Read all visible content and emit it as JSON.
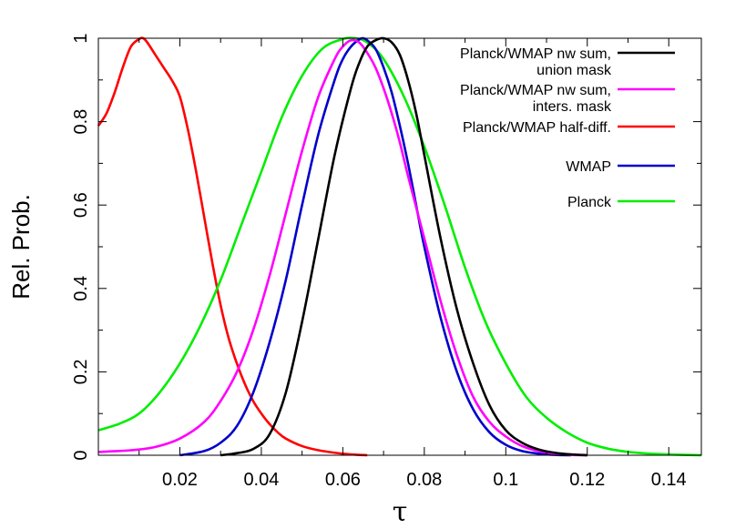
{
  "chart_data": {
    "type": "line",
    "title": "",
    "xlabel": "τ",
    "ylabel": "Rel. Prob.",
    "xlim": [
      0.0,
      0.148
    ],
    "ylim": [
      0,
      1.0
    ],
    "x_ticks": [
      0.02,
      0.04,
      0.06,
      0.08,
      0.1,
      0.12,
      0.14
    ],
    "x_tick_labels": [
      "0.02",
      "0.04",
      "0.06",
      "0.08",
      "0.1",
      "0.12",
      "0.14"
    ],
    "y_ticks": [
      0,
      0.2,
      0.4,
      0.6,
      0.8,
      1
    ],
    "y_tick_labels": [
      "0",
      "0.2",
      "0.4",
      "0.6",
      "0.8",
      "1"
    ],
    "grid": false,
    "legend_position": "top-right",
    "series": [
      {
        "name": "Planck/WMAP nw sum,\nunion mask",
        "color": "#000000",
        "x": [
          0.03,
          0.034,
          0.038,
          0.042,
          0.046,
          0.05,
          0.054,
          0.058,
          0.062,
          0.064,
          0.066,
          0.068,
          0.07,
          0.072,
          0.074,
          0.076,
          0.078,
          0.08,
          0.084,
          0.088,
          0.092,
          0.096,
          0.1,
          0.104,
          0.108,
          0.112,
          0.116,
          0.12
        ],
        "y": [
          0.0,
          0.005,
          0.015,
          0.05,
          0.15,
          0.32,
          0.52,
          0.72,
          0.88,
          0.94,
          0.98,
          0.995,
          1.0,
          0.99,
          0.96,
          0.9,
          0.82,
          0.72,
          0.52,
          0.35,
          0.22,
          0.12,
          0.06,
          0.03,
          0.014,
          0.006,
          0.002,
          0.0
        ]
      },
      {
        "name": "Planck/WMAP nw sum,\ninters. mask",
        "color": "#ff00ff",
        "x": [
          0.0,
          0.008,
          0.014,
          0.02,
          0.026,
          0.03,
          0.034,
          0.038,
          0.042,
          0.046,
          0.05,
          0.054,
          0.058,
          0.06,
          0.062,
          0.064,
          0.066,
          0.068,
          0.07,
          0.072,
          0.074,
          0.076,
          0.08,
          0.084,
          0.088,
          0.092,
          0.096,
          0.1,
          0.104,
          0.108,
          0.112,
          0.116,
          0.12
        ],
        "y": [
          0.008,
          0.012,
          0.02,
          0.04,
          0.08,
          0.13,
          0.2,
          0.3,
          0.43,
          0.58,
          0.73,
          0.86,
          0.95,
          0.98,
          0.995,
          0.99,
          0.965,
          0.93,
          0.88,
          0.82,
          0.75,
          0.67,
          0.52,
          0.37,
          0.24,
          0.14,
          0.08,
          0.045,
          0.022,
          0.01,
          0.004,
          0.001,
          0.0
        ]
      },
      {
        "name": "Planck/WMAP half-diff.",
        "color": "#ff0000",
        "x": [
          0.0,
          0.002,
          0.004,
          0.006,
          0.008,
          0.01,
          0.011,
          0.012,
          0.014,
          0.016,
          0.018,
          0.02,
          0.022,
          0.024,
          0.026,
          0.028,
          0.03,
          0.032,
          0.034,
          0.036,
          0.038,
          0.04,
          0.042,
          0.044,
          0.046,
          0.05,
          0.054,
          0.058,
          0.062,
          0.066
        ],
        "y": [
          0.79,
          0.82,
          0.87,
          0.93,
          0.98,
          0.998,
          1.0,
          0.99,
          0.96,
          0.93,
          0.9,
          0.86,
          0.78,
          0.68,
          0.57,
          0.46,
          0.36,
          0.28,
          0.22,
          0.17,
          0.13,
          0.1,
          0.075,
          0.055,
          0.04,
          0.022,
          0.012,
          0.006,
          0.002,
          0.0
        ]
      },
      {
        "name": "WMAP",
        "color": "#0000cc",
        "x": [
          0.02,
          0.026,
          0.03,
          0.034,
          0.038,
          0.042,
          0.046,
          0.05,
          0.054,
          0.058,
          0.06,
          0.062,
          0.064,
          0.065,
          0.066,
          0.068,
          0.07,
          0.072,
          0.074,
          0.076,
          0.078,
          0.08,
          0.084,
          0.088,
          0.092,
          0.096,
          0.1,
          0.104,
          0.108,
          0.112,
          0.116
        ],
        "y": [
          0.0,
          0.01,
          0.03,
          0.07,
          0.15,
          0.27,
          0.42,
          0.6,
          0.77,
          0.9,
          0.95,
          0.98,
          0.997,
          1.0,
          0.995,
          0.975,
          0.93,
          0.87,
          0.79,
          0.7,
          0.6,
          0.5,
          0.33,
          0.2,
          0.11,
          0.055,
          0.025,
          0.01,
          0.004,
          0.001,
          0.0
        ]
      },
      {
        "name": "Planck",
        "color": "#00ee00",
        "x": [
          0.0,
          0.005,
          0.01,
          0.015,
          0.02,
          0.025,
          0.03,
          0.035,
          0.04,
          0.045,
          0.05,
          0.055,
          0.06,
          0.063,
          0.066,
          0.07,
          0.075,
          0.08,
          0.085,
          0.09,
          0.095,
          0.1,
          0.105,
          0.11,
          0.115,
          0.12,
          0.125,
          0.13,
          0.135,
          0.14,
          0.148
        ],
        "y": [
          0.06,
          0.075,
          0.1,
          0.15,
          0.22,
          0.31,
          0.42,
          0.55,
          0.68,
          0.81,
          0.91,
          0.975,
          0.998,
          1.0,
          0.99,
          0.95,
          0.86,
          0.74,
          0.6,
          0.45,
          0.32,
          0.22,
          0.14,
          0.09,
          0.055,
          0.03,
          0.016,
          0.008,
          0.004,
          0.002,
          0.0
        ]
      }
    ]
  }
}
